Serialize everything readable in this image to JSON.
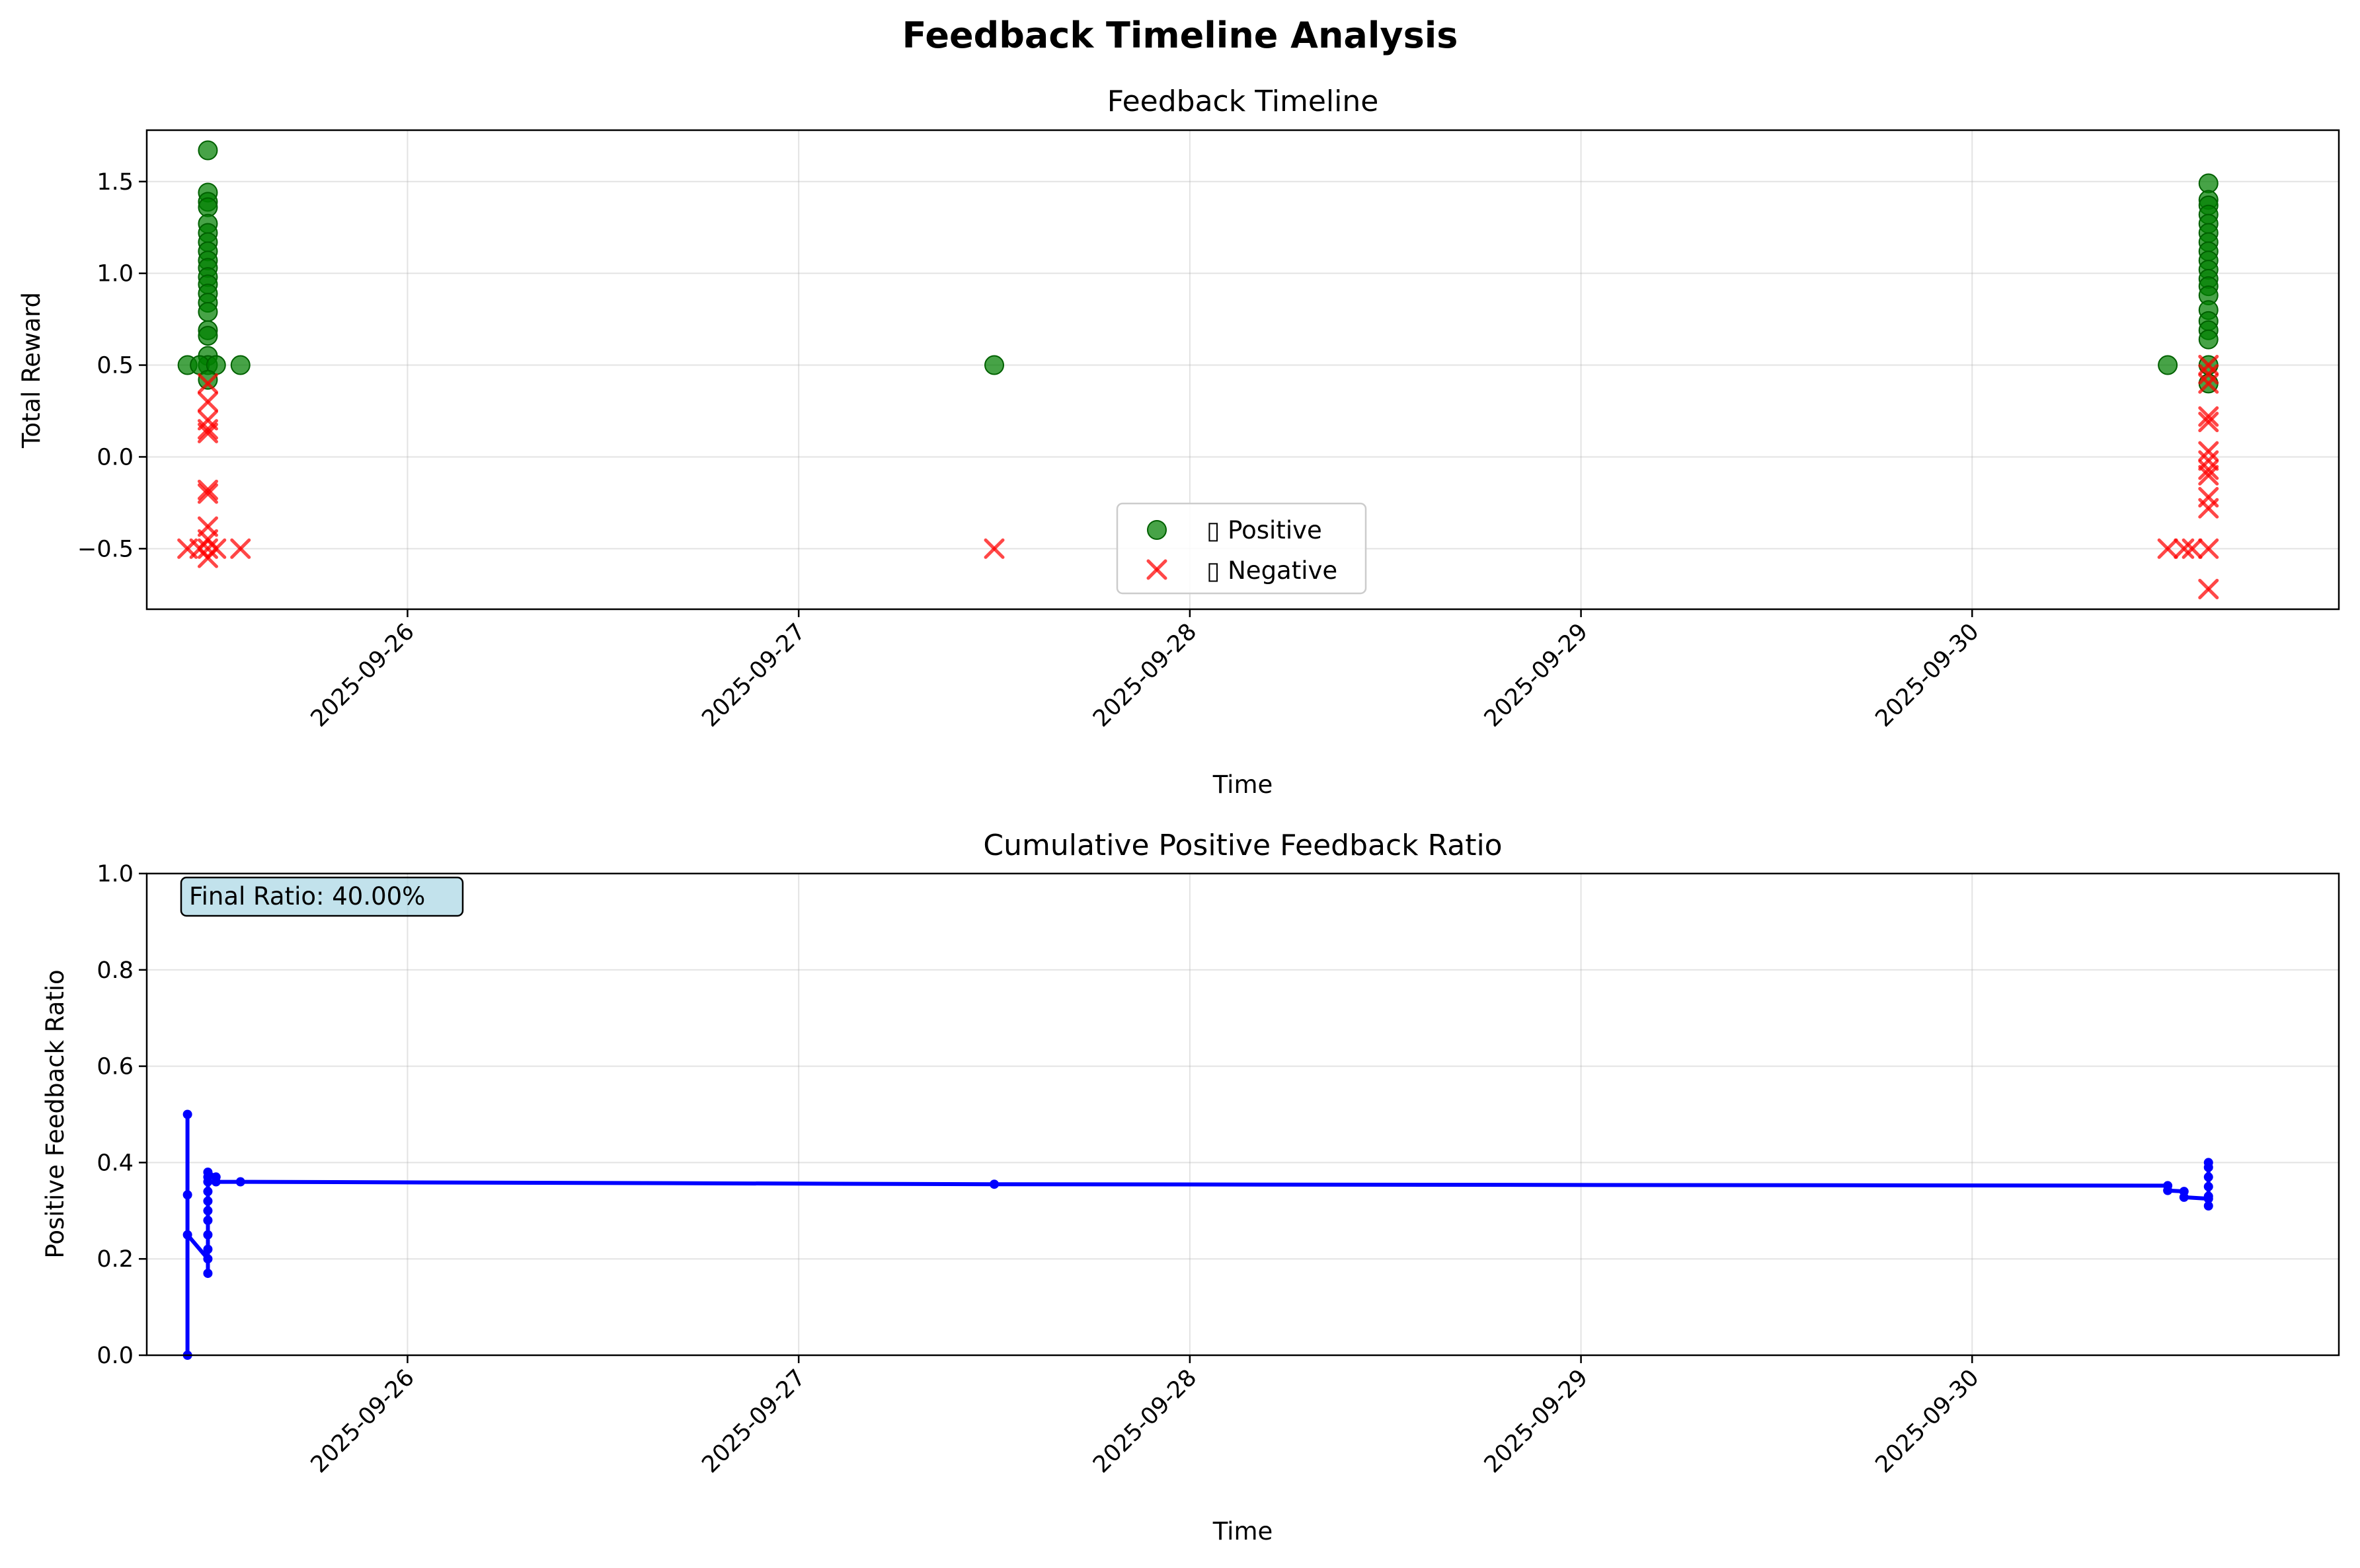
{
  "figure": {
    "title": "Feedback Timeline Analysis"
  },
  "chart_data": [
    {
      "type": "scatter",
      "title": "Feedback Timeline",
      "xlabel": "Time",
      "ylabel": "Total Reward",
      "x_axis": {
        "type": "date",
        "range": [
          "2025-09-25 08:00",
          "2025-09-30 22:30"
        ],
        "ticks": [
          "2025-09-26",
          "2025-09-27",
          "2025-09-28",
          "2025-09-29",
          "2025-09-30"
        ]
      },
      "ylim": [
        -0.83,
        1.78
      ],
      "yticks": [
        -0.5,
        0.0,
        0.5,
        1.0,
        1.5
      ],
      "ytick_labels": [
        "−0.5",
        "0.0",
        "0.5",
        "1.0",
        "1.5"
      ],
      "grid": true,
      "legend": {
        "placement": "lower-center",
        "entries": [
          "▯ Positive",
          "▯ Negative"
        ]
      },
      "series": [
        {
          "name": "▯ Positive",
          "marker": "circle",
          "color": "#008000",
          "points": [
            {
              "x": "2025-09-25 10:30",
              "y": 0.5
            },
            {
              "x": "2025-09-25 11:45",
              "y": 1.67
            },
            {
              "x": "2025-09-25 11:45",
              "y": 1.44
            },
            {
              "x": "2025-09-25 11:45",
              "y": 1.39
            },
            {
              "x": "2025-09-25 11:45",
              "y": 1.36
            },
            {
              "x": "2025-09-25 11:45",
              "y": 1.27
            },
            {
              "x": "2025-09-25 11:45",
              "y": 1.22
            },
            {
              "x": "2025-09-25 11:45",
              "y": 1.17
            },
            {
              "x": "2025-09-25 11:45",
              "y": 1.12
            },
            {
              "x": "2025-09-25 11:45",
              "y": 1.07
            },
            {
              "x": "2025-09-25 11:45",
              "y": 1.03
            },
            {
              "x": "2025-09-25 11:45",
              "y": 0.98
            },
            {
              "x": "2025-09-25 11:45",
              "y": 0.94
            },
            {
              "x": "2025-09-25 11:45",
              "y": 0.89
            },
            {
              "x": "2025-09-25 11:45",
              "y": 0.84
            },
            {
              "x": "2025-09-25 11:45",
              "y": 0.79
            },
            {
              "x": "2025-09-25 11:45",
              "y": 0.69
            },
            {
              "x": "2025-09-25 11:45",
              "y": 0.66
            },
            {
              "x": "2025-09-25 11:45",
              "y": 0.55
            },
            {
              "x": "2025-09-25 11:45",
              "y": 0.5
            },
            {
              "x": "2025-09-25 11:15",
              "y": 0.5
            },
            {
              "x": "2025-09-25 12:15",
              "y": 0.5
            },
            {
              "x": "2025-09-25 11:45",
              "y": 0.42
            },
            {
              "x": "2025-09-25 13:45",
              "y": 0.5
            },
            {
              "x": "2025-09-27 12:00",
              "y": 0.5
            },
            {
              "x": "2025-09-30 12:00",
              "y": 0.5
            },
            {
              "x": "2025-09-30 14:30",
              "y": 1.49
            },
            {
              "x": "2025-09-30 14:30",
              "y": 1.4
            },
            {
              "x": "2025-09-30 14:30",
              "y": 1.37
            },
            {
              "x": "2025-09-30 14:30",
              "y": 1.32
            },
            {
              "x": "2025-09-30 14:30",
              "y": 1.27
            },
            {
              "x": "2025-09-30 14:30",
              "y": 1.22
            },
            {
              "x": "2025-09-30 14:30",
              "y": 1.17
            },
            {
              "x": "2025-09-30 14:30",
              "y": 1.12
            },
            {
              "x": "2025-09-30 14:30",
              "y": 1.07
            },
            {
              "x": "2025-09-30 14:30",
              "y": 1.02
            },
            {
              "x": "2025-09-30 14:30",
              "y": 0.97
            },
            {
              "x": "2025-09-30 14:30",
              "y": 0.93
            },
            {
              "x": "2025-09-30 14:30",
              "y": 0.88
            },
            {
              "x": "2025-09-30 14:30",
              "y": 0.8
            },
            {
              "x": "2025-09-30 14:30",
              "y": 0.74
            },
            {
              "x": "2025-09-30 14:30",
              "y": 0.69
            },
            {
              "x": "2025-09-30 14:30",
              "y": 0.64
            },
            {
              "x": "2025-09-30 14:30",
              "y": 0.5
            },
            {
              "x": "2025-09-30 14:30",
              "y": 0.4
            }
          ]
        },
        {
          "name": "▯ Negative",
          "marker": "x",
          "color": "#ff0000",
          "points": [
            {
              "x": "2025-09-25 10:30",
              "y": -0.5
            },
            {
              "x": "2025-09-25 11:45",
              "y": 0.4
            },
            {
              "x": "2025-09-25 11:45",
              "y": 0.3
            },
            {
              "x": "2025-09-25 11:45",
              "y": 0.2
            },
            {
              "x": "2025-09-25 11:45",
              "y": 0.15
            },
            {
              "x": "2025-09-25 11:45",
              "y": 0.13
            },
            {
              "x": "2025-09-25 11:45",
              "y": -0.18
            },
            {
              "x": "2025-09-25 11:45",
              "y": -0.2
            },
            {
              "x": "2025-09-25 11:45",
              "y": -0.38
            },
            {
              "x": "2025-09-25 11:45",
              "y": -0.45
            },
            {
              "x": "2025-09-25 11:15",
              "y": -0.5
            },
            {
              "x": "2025-09-25 11:45",
              "y": -0.5
            },
            {
              "x": "2025-09-25 12:15",
              "y": -0.5
            },
            {
              "x": "2025-09-25 11:45",
              "y": -0.55
            },
            {
              "x": "2025-09-25 13:45",
              "y": -0.5
            },
            {
              "x": "2025-09-27 12:00",
              "y": -0.5
            },
            {
              "x": "2025-09-30 12:00",
              "y": -0.5
            },
            {
              "x": "2025-09-30 13:00",
              "y": -0.5
            },
            {
              "x": "2025-09-30 13:30",
              "y": -0.5
            },
            {
              "x": "2025-09-30 14:30",
              "y": -0.5
            },
            {
              "x": "2025-09-30 14:30",
              "y": 0.5
            },
            {
              "x": "2025-09-30 14:30",
              "y": 0.45
            },
            {
              "x": "2025-09-30 14:30",
              "y": 0.4
            },
            {
              "x": "2025-09-30 14:30",
              "y": 0.22
            },
            {
              "x": "2025-09-30 14:30",
              "y": 0.19
            },
            {
              "x": "2025-09-30 14:30",
              "y": 0.03
            },
            {
              "x": "2025-09-30 14:30",
              "y": -0.02
            },
            {
              "x": "2025-09-30 14:30",
              "y": -0.07
            },
            {
              "x": "2025-09-30 14:30",
              "y": -0.1
            },
            {
              "x": "2025-09-30 14:30",
              "y": -0.22
            },
            {
              "x": "2025-09-30 14:30",
              "y": -0.28
            },
            {
              "x": "2025-09-30 14:30",
              "y": -0.72
            }
          ]
        }
      ]
    },
    {
      "type": "line",
      "title": "Cumulative Positive Feedback Ratio",
      "xlabel": "Time",
      "ylabel": "Positive Feedback Ratio",
      "x_axis": {
        "type": "date",
        "range": [
          "2025-09-25 08:00",
          "2025-09-30 22:30"
        ],
        "ticks": [
          "2025-09-26",
          "2025-09-27",
          "2025-09-28",
          "2025-09-29",
          "2025-09-30"
        ]
      },
      "ylim": [
        0.0,
        1.0
      ],
      "yticks": [
        0.0,
        0.2,
        0.4,
        0.6,
        0.8,
        1.0
      ],
      "ytick_labels": [
        "0.0",
        "0.2",
        "0.4",
        "0.6",
        "0.8",
        "1.0"
      ],
      "grid": true,
      "annotation": "Final Ratio: 40.00%",
      "series": [
        {
          "color": "#0000ff",
          "points": [
            {
              "x": "2025-09-25 10:30",
              "y": 0.0
            },
            {
              "x": "2025-09-25 10:30",
              "y": 0.5
            },
            {
              "x": "2025-09-25 10:30",
              "y": 0.333
            },
            {
              "x": "2025-09-25 10:30",
              "y": 0.25
            },
            {
              "x": "2025-09-25 11:45",
              "y": 0.2
            },
            {
              "x": "2025-09-25 11:45",
              "y": 0.17
            },
            {
              "x": "2025-09-25 11:45",
              "y": 0.22
            },
            {
              "x": "2025-09-25 11:45",
              "y": 0.25
            },
            {
              "x": "2025-09-25 11:45",
              "y": 0.28
            },
            {
              "x": "2025-09-25 11:45",
              "y": 0.3
            },
            {
              "x": "2025-09-25 11:45",
              "y": 0.32
            },
            {
              "x": "2025-09-25 11:45",
              "y": 0.34
            },
            {
              "x": "2025-09-25 11:45",
              "y": 0.36
            },
            {
              "x": "2025-09-25 11:45",
              "y": 0.37
            },
            {
              "x": "2025-09-25 11:45",
              "y": 0.38
            },
            {
              "x": "2025-09-25 12:15",
              "y": 0.37
            },
            {
              "x": "2025-09-25 12:15",
              "y": 0.36
            },
            {
              "x": "2025-09-25 13:45",
              "y": 0.36
            },
            {
              "x": "2025-09-27 12:00",
              "y": 0.355
            },
            {
              "x": "2025-09-30 12:00",
              "y": 0.352
            },
            {
              "x": "2025-09-30 12:00",
              "y": 0.342
            },
            {
              "x": "2025-09-30 13:00",
              "y": 0.34
            },
            {
              "x": "2025-09-30 13:00",
              "y": 0.328
            },
            {
              "x": "2025-09-30 14:30",
              "y": 0.325
            },
            {
              "x": "2025-09-30 14:30",
              "y": 0.31
            },
            {
              "x": "2025-09-30 14:30",
              "y": 0.33
            },
            {
              "x": "2025-09-30 14:30",
              "y": 0.35
            },
            {
              "x": "2025-09-30 14:30",
              "y": 0.37
            },
            {
              "x": "2025-09-30 14:30",
              "y": 0.39
            },
            {
              "x": "2025-09-30 14:30",
              "y": 0.4
            }
          ]
        }
      ]
    }
  ]
}
